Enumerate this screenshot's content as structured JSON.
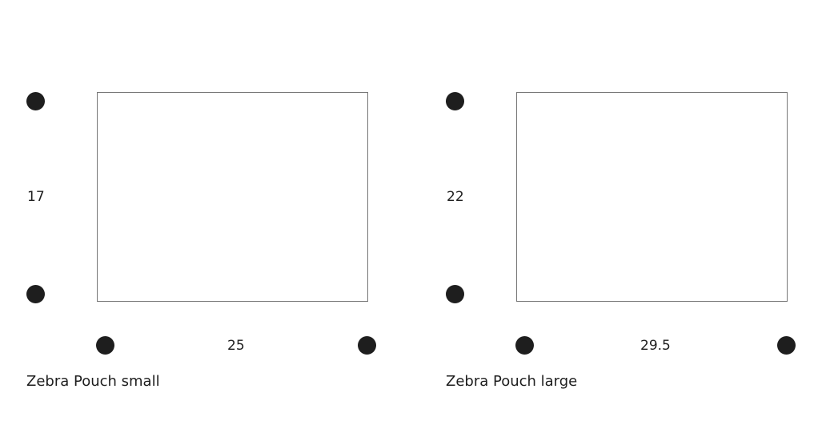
{
  "products": [
    {
      "name": "Zebra Pouch small",
      "height": "17",
      "width": "25"
    },
    {
      "name": "Zebra Pouch large",
      "height": "22",
      "width": "29.5"
    }
  ],
  "colors": {
    "dot": "#1e1e1e",
    "outline": "#777777"
  }
}
